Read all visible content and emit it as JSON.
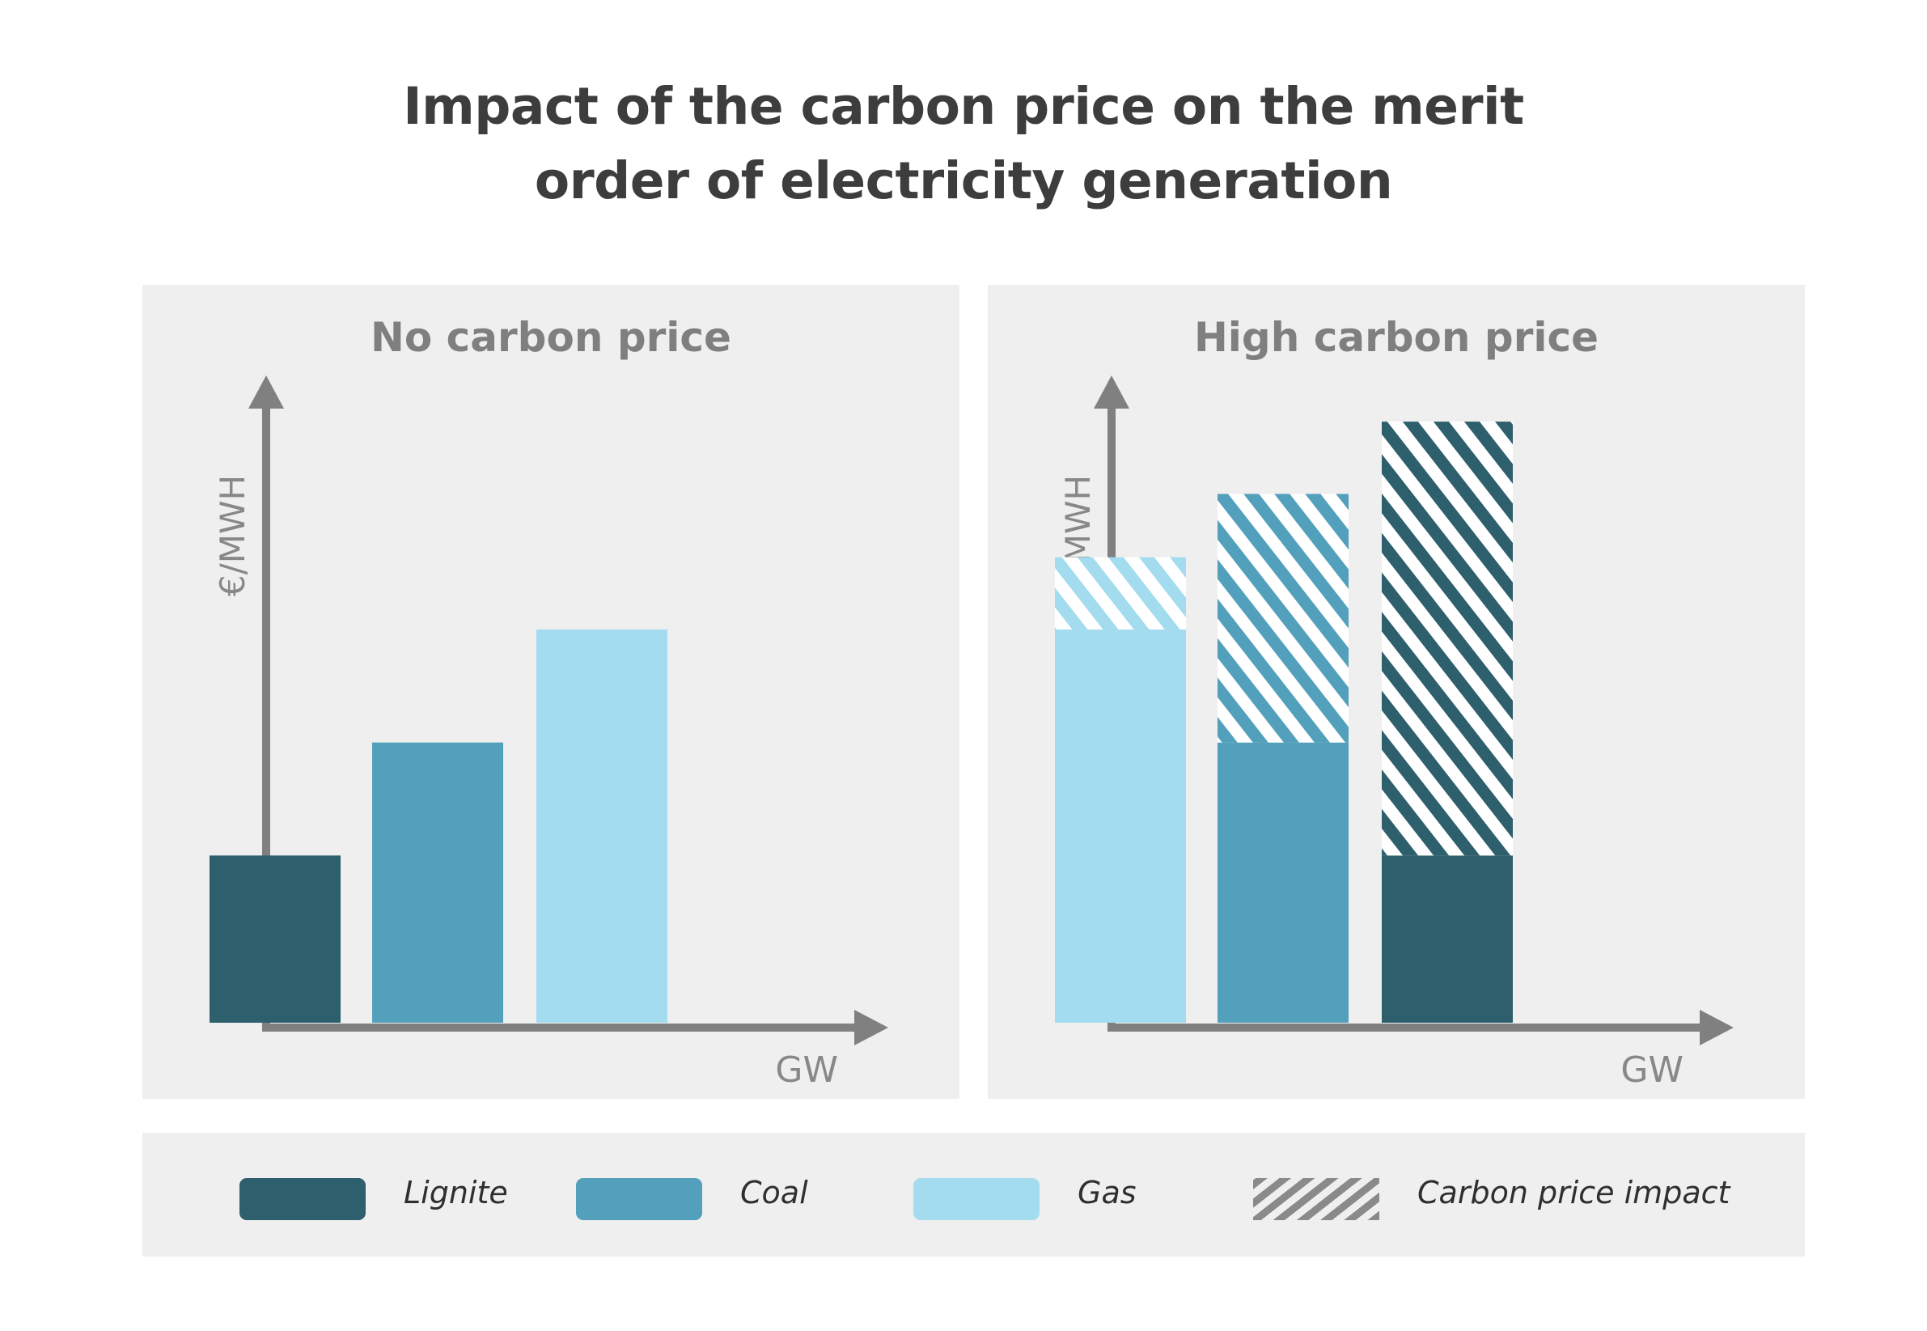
{
  "title_lines": [
    "Impact of the carbon price on the merit",
    "order of electricity generation"
  ],
  "colors": {
    "lignite": "#2e5f6d",
    "coal": "#52a0bb",
    "gas": "#a3dcef",
    "axis": "#808080",
    "panel_bg": "#efefef",
    "hatch_legend": "#8a8a8a"
  },
  "chart_data": [
    {
      "type": "bar",
      "title": "No carbon price",
      "xlabel": "GW",
      "ylabel": "€/MWH",
      "categories": [
        "Lignite",
        "Coal",
        "Gas"
      ],
      "series": [
        {
          "name": "Lignite",
          "values": [
            37,
            null,
            null
          ]
        },
        {
          "name": "Coal",
          "values": [
            null,
            62,
            null
          ]
        },
        {
          "name": "Gas",
          "values": [
            null,
            null,
            87
          ]
        }
      ],
      "ylim": [
        0,
        140
      ],
      "grid": false
    },
    {
      "type": "bar",
      "stacked": true,
      "title": "High carbon price",
      "xlabel": "GW",
      "ylabel": "€/MWH",
      "categories": [
        "Gas",
        "Coal",
        "Lignite"
      ],
      "series": [
        {
          "name": "Gas",
          "values": [
            87,
            null,
            null
          ]
        },
        {
          "name": "Coal",
          "values": [
            null,
            62,
            null
          ]
        },
        {
          "name": "Lignite",
          "values": [
            null,
            null,
            37
          ]
        },
        {
          "name": "Carbon price impact",
          "values": [
            16,
            55,
            96
          ]
        }
      ],
      "ylim": [
        0,
        140
      ],
      "grid": false
    }
  ],
  "legend": {
    "placement": "bottom",
    "items": [
      {
        "label": "Lignite",
        "color": "#2e5f6d",
        "hatched": false
      },
      {
        "label": "Coal",
        "color": "#52a0bb",
        "hatched": false
      },
      {
        "label": "Gas",
        "color": "#a3dcef",
        "hatched": false
      },
      {
        "label": "Carbon price impact",
        "color": "#8a8a8a",
        "hatched": true
      }
    ]
  }
}
